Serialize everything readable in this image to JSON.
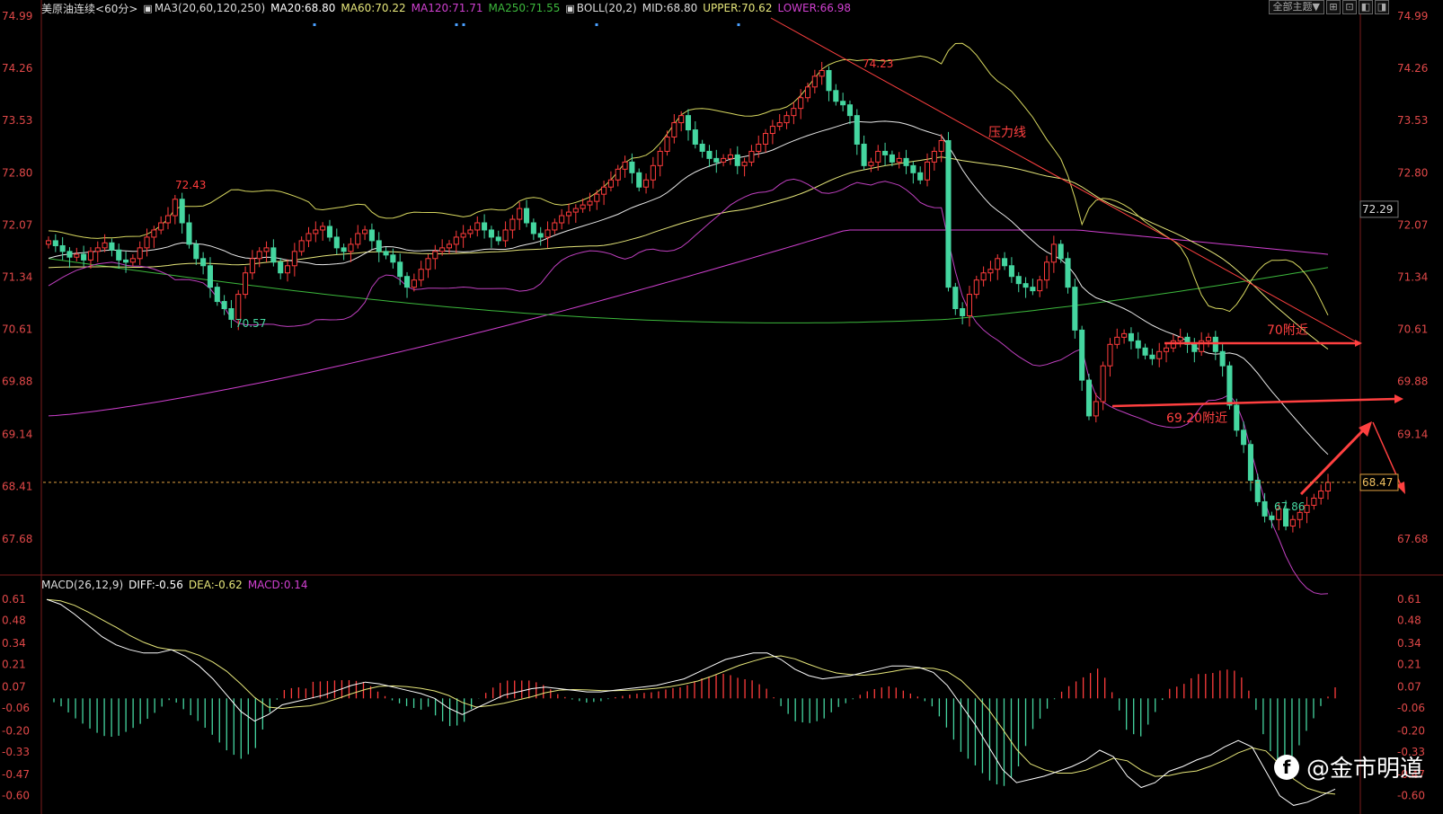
{
  "header": {
    "symbol": "美原油连续",
    "period": "<60分>",
    "ma_label": "MA3(20,60,120,250)",
    "ma20": "MA20:68.80",
    "ma60": "MA60:70.22",
    "ma120": "MA120:71.71",
    "ma250": "MA250:71.55",
    "boll_label": "BOLL(20,2)",
    "boll_mid": "MID:68.80",
    "boll_upper": "UPPER:70.62",
    "boll_lower": "LOWER:66.98",
    "theme_button": "全部主题▼"
  },
  "macd_header": {
    "label": "MACD(26,12,9)",
    "diff": "DIFF:-0.56",
    "dea": "DEA:-0.62",
    "macd": "MACD:0.14"
  },
  "colors": {
    "background": "#000000",
    "up": "#ff3c3c",
    "down": "#45d6a0",
    "ma20": "#ffffff",
    "ma60": "#e6e67a",
    "ma120": "#d040d0",
    "ma250": "#3cb83c",
    "axis_text": "#e04848",
    "annotation": "#ff4040",
    "price_line": "#e0a040"
  },
  "chart_data": [
    {
      "type": "candlestick",
      "ylim": [
        67.2,
        74.99
      ],
      "ytick_labels_left": [
        "74.99",
        "74.26",
        "73.53",
        "72.80",
        "72.07",
        "71.34",
        "70.61",
        "69.88",
        "69.14",
        "68.41",
        "67.68"
      ],
      "ytick_labels_right": [
        "74.99",
        "74.26",
        "73.53",
        "72.80",
        "72.07",
        "71.34",
        "70.61",
        "69.88",
        "69.14",
        "67.68"
      ],
      "current_price_tag": "68.47",
      "right_axis_tag": "72.29",
      "annotations": {
        "high_left": "72.43",
        "low_left": "70.57",
        "high_peak": "74.23",
        "low_recent": "67.86",
        "resistance_label": "压力线",
        "level_70": "70附近",
        "level_6920": "69.20附近"
      },
      "close_points": [
        71.85,
        71.78,
        71.7,
        71.62,
        71.66,
        71.58,
        71.7,
        71.75,
        71.82,
        71.72,
        71.58,
        71.55,
        71.6,
        71.75,
        71.9,
        72.0,
        72.1,
        72.2,
        72.43,
        72.1,
        71.8,
        71.6,
        71.5,
        71.2,
        71.0,
        70.9,
        70.75,
        71.1,
        71.4,
        71.6,
        71.7,
        71.75,
        71.55,
        71.4,
        71.5,
        71.7,
        71.85,
        71.95,
        72.0,
        72.05,
        71.9,
        71.75,
        71.7,
        71.8,
        71.95,
        72.0,
        71.85,
        71.7,
        71.65,
        71.55,
        71.35,
        71.2,
        71.3,
        71.45,
        71.6,
        71.7,
        71.75,
        71.8,
        71.9,
        71.95,
        72.0,
        72.1,
        72.0,
        71.9,
        71.85,
        72.0,
        72.15,
        72.3,
        72.1,
        71.95,
        71.9,
        72.0,
        72.1,
        72.2,
        72.25,
        72.3,
        72.35,
        72.4,
        72.5,
        72.6,
        72.7,
        72.85,
        72.95,
        72.8,
        72.6,
        72.7,
        72.9,
        73.1,
        73.3,
        73.5,
        73.6,
        73.4,
        73.2,
        73.1,
        73.0,
        72.95,
        73.0,
        73.05,
        72.9,
        72.95,
        73.1,
        73.2,
        73.35,
        73.45,
        73.5,
        73.6,
        73.7,
        73.85,
        74.0,
        74.15,
        74.23,
        73.95,
        73.8,
        73.75,
        73.6,
        73.2,
        72.9,
        72.95,
        73.1,
        73.05,
        72.95,
        73.0,
        72.9,
        72.8,
        72.7,
        72.95,
        73.1,
        73.25,
        71.2,
        70.9,
        70.8,
        71.1,
        71.3,
        71.4,
        71.45,
        71.6,
        71.5,
        71.35,
        71.25,
        71.2,
        71.15,
        71.3,
        71.55,
        71.8,
        71.6,
        71.2,
        70.6,
        69.9,
        69.4,
        69.6,
        70.1,
        70.4,
        70.5,
        70.55,
        70.45,
        70.35,
        70.25,
        70.2,
        70.3,
        70.35,
        70.45,
        70.5,
        70.4,
        70.3,
        70.45,
        70.5,
        70.3,
        70.1,
        69.55,
        69.2,
        69.0,
        68.5,
        68.2,
        68.0,
        67.95,
        68.1,
        67.86,
        67.95,
        68.05,
        68.15,
        68.25,
        68.35,
        68.47
      ],
      "series": [
        {
          "name": "MA20",
          "values_ref": "computed"
        },
        {
          "name": "MA60",
          "values_ref": "computed"
        },
        {
          "name": "MA120",
          "values_ref": "computed"
        },
        {
          "name": "MA250",
          "values_ref": "computed"
        }
      ]
    },
    {
      "type": "bar",
      "ylim": [
        -0.68,
        0.65
      ],
      "ytick_labels": [
        "0.61",
        "0.48",
        "0.34",
        "0.21",
        "0.07",
        "-0.06",
        "-0.20",
        "-0.33",
        "-0.47",
        "-0.60"
      ],
      "macd_points": [
        0.61,
        0.58,
        0.52,
        0.45,
        0.38,
        0.33,
        0.3,
        0.28,
        0.28,
        0.3,
        0.26,
        0.2,
        0.12,
        0.02,
        -0.08,
        -0.14,
        -0.1,
        -0.04,
        -0.02,
        0.0,
        0.02,
        0.05,
        0.08,
        0.1,
        0.09,
        0.07,
        0.05,
        0.03,
        0.0,
        -0.06,
        -0.1,
        -0.06,
        -0.02,
        0.02,
        0.04,
        0.06,
        0.07,
        0.06,
        0.05,
        0.04,
        0.04,
        0.05,
        0.06,
        0.07,
        0.08,
        0.1,
        0.12,
        0.16,
        0.2,
        0.24,
        0.26,
        0.28,
        0.28,
        0.24,
        0.18,
        0.14,
        0.12,
        0.13,
        0.14,
        0.16,
        0.18,
        0.2,
        0.2,
        0.19,
        0.16,
        0.08,
        -0.04,
        -0.16,
        -0.3,
        -0.44,
        -0.52,
        -0.5,
        -0.48,
        -0.45,
        -0.42,
        -0.38,
        -0.32,
        -0.36,
        -0.48,
        -0.55,
        -0.52,
        -0.45,
        -0.42,
        -0.38,
        -0.35,
        -0.3,
        -0.26,
        -0.3,
        -0.45,
        -0.6,
        -0.66,
        -0.64,
        -0.6,
        -0.56
      ]
    }
  ],
  "watermark": {
    "logo": "f",
    "text": "@金市明道"
  }
}
